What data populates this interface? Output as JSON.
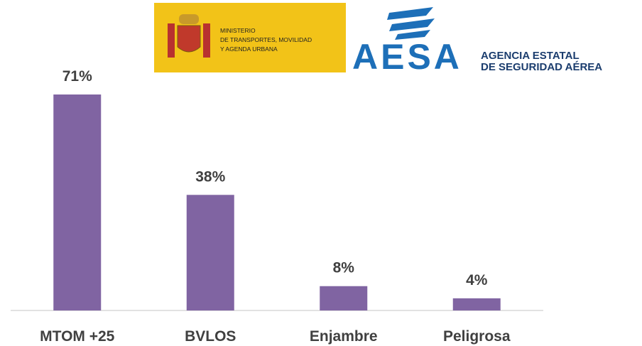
{
  "logos": {
    "ministry": [
      "MINISTERIO",
      "DE TRANSPORTES, MOVILIDAD",
      "Y AGENDA URBANA"
    ],
    "agency_mark": "AESA",
    "agency": [
      "AGENCIA ESTATAL",
      "DE SEGURIDAD AÉREA"
    ]
  },
  "chart_data": {
    "type": "bar",
    "categories": [
      "MTOM +25",
      "BVLOS",
      "Enjambre",
      "Peligrosa"
    ],
    "values": [
      71,
      38,
      8,
      4
    ],
    "value_labels": [
      "71%",
      "38%",
      "8%",
      "4%"
    ],
    "color": "#8064a2"
  }
}
